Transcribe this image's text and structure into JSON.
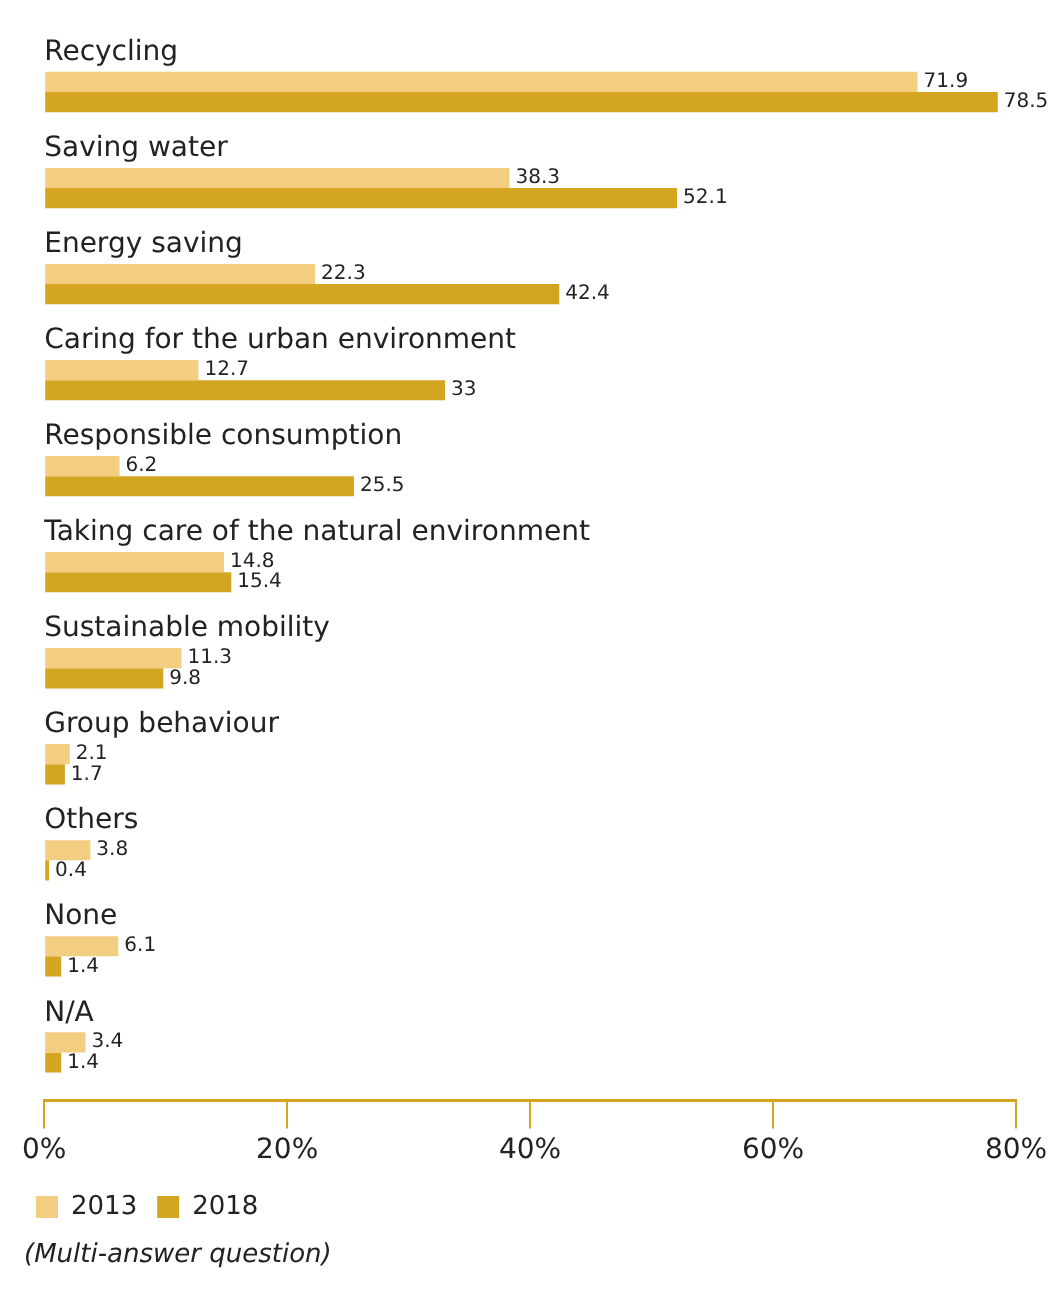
{
  "chart_data": {
    "type": "bar",
    "orientation": "horizontal",
    "categories": [
      "Recycling",
      "Saving water",
      "Energy saving",
      "Caring for the urban environment",
      "Responsible consumption",
      "Taking care of the natural environment",
      "Sustainable mobility",
      "Group behaviour",
      "Others",
      "None",
      "N/A"
    ],
    "series": [
      {
        "name": "2013",
        "color": "#f3cd80",
        "values": [
          71.9,
          38.3,
          22.3,
          12.7,
          6.2,
          14.8,
          11.3,
          2.1,
          3.8,
          6.1,
          3.4
        ]
      },
      {
        "name": "2018",
        "color": "#d4a520",
        "values": [
          78.5,
          52.1,
          42.4,
          33,
          25.5,
          15.4,
          9.8,
          1.7,
          0.4,
          1.4,
          1.4
        ]
      }
    ],
    "xlim": [
      0,
      80
    ],
    "xticks": [
      {
        "value": 0,
        "label": "0%"
      },
      {
        "value": 20,
        "label": "20%"
      },
      {
        "value": 40,
        "label": "40%"
      },
      {
        "value": 60,
        "label": "60%"
      },
      {
        "value": 80,
        "label": "80%"
      }
    ],
    "data_labels": true,
    "grid": false,
    "legend": "bottom left",
    "annotations": [
      "(Multi-answer question)"
    ]
  }
}
